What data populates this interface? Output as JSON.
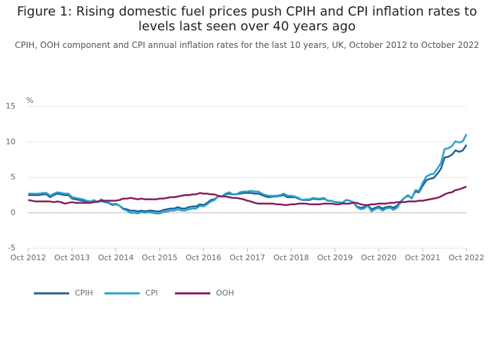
{
  "chart_data": {
    "type": "line",
    "title": "Figure 1: Rising domestic fuel prices push CPIH and CPI inflation rates to levels last seen over 40 years ago",
    "subtitle": "CPIH, OOH component and CPI annual inflation rates for the last 10 years, UK, October 2012 to October 2022",
    "y_unit": "%",
    "categories": [
      "Oct 2012",
      null,
      null,
      null,
      null,
      null,
      null,
      null,
      null,
      null,
      null,
      null,
      "Oct 2013",
      null,
      null,
      null,
      null,
      null,
      null,
      null,
      null,
      null,
      null,
      null,
      "Oct 2014",
      null,
      null,
      null,
      null,
      null,
      null,
      null,
      null,
      null,
      null,
      null,
      "Oct 2015",
      null,
      null,
      null,
      null,
      null,
      null,
      null,
      null,
      null,
      null,
      null,
      "Oct 2016",
      null,
      null,
      null,
      null,
      null,
      null,
      null,
      null,
      null,
      null,
      null,
      "Oct 2017",
      null,
      null,
      null,
      null,
      null,
      null,
      null,
      null,
      null,
      null,
      null,
      "Oct 2018",
      null,
      null,
      null,
      null,
      null,
      null,
      null,
      null,
      null,
      null,
      null,
      "Oct 2019",
      null,
      null,
      null,
      null,
      null,
      null,
      null,
      null,
      null,
      null,
      null,
      "Oct 2020",
      null,
      null,
      null,
      null,
      null,
      null,
      null,
      null,
      null,
      null,
      null,
      "Oct 2021",
      null,
      null,
      null,
      null,
      null,
      null,
      null,
      null,
      null,
      null,
      null,
      "Oct 2022"
    ],
    "series": [
      {
        "name": "CPIH",
        "color": "#206095",
        "values": [
          2.5,
          2.5,
          2.5,
          2.5,
          2.6,
          2.6,
          2.2,
          2.5,
          2.7,
          2.6,
          2.5,
          2.5,
          2.0,
          1.9,
          1.8,
          1.7,
          1.6,
          1.5,
          1.6,
          1.5,
          1.7,
          1.5,
          1.4,
          1.1,
          1.2,
          1.0,
          0.6,
          0.5,
          0.3,
          0.3,
          0.2,
          0.3,
          0.2,
          0.3,
          0.3,
          0.2,
          0.2,
          0.4,
          0.5,
          0.6,
          0.6,
          0.8,
          0.6,
          0.6,
          0.8,
          0.9,
          0.9,
          1.2,
          1.1,
          1.4,
          1.8,
          1.9,
          2.3,
          2.3,
          2.6,
          2.7,
          2.6,
          2.6,
          2.7,
          2.8,
          2.8,
          2.8,
          2.7,
          2.7,
          2.5,
          2.3,
          2.2,
          2.3,
          2.3,
          2.4,
          2.5,
          2.2,
          2.2,
          2.2,
          2.0,
          1.8,
          1.8,
          1.8,
          2.0,
          1.9,
          1.9,
          2.0,
          1.7,
          1.7,
          1.5,
          1.5,
          1.4,
          1.8,
          1.7,
          1.5,
          0.9,
          0.7,
          0.8,
          1.1,
          0.5,
          0.7,
          0.9,
          0.6,
          0.8,
          0.9,
          0.7,
          1.0,
          1.6,
          2.1,
          2.4,
          2.1,
          3.0,
          2.9,
          3.8,
          4.6,
          4.8,
          4.9,
          5.5,
          6.2,
          7.8,
          7.9,
          8.2,
          8.8,
          8.6,
          8.8,
          9.6
        ]
      },
      {
        "name": "CPI",
        "color": "#27a0cc",
        "values": [
          2.7,
          2.7,
          2.7,
          2.7,
          2.8,
          2.8,
          2.4,
          2.7,
          2.9,
          2.8,
          2.7,
          2.7,
          2.2,
          2.1,
          2.0,
          1.9,
          1.7,
          1.6,
          1.8,
          1.5,
          1.9,
          1.6,
          1.5,
          1.2,
          1.3,
          1.0,
          0.5,
          0.3,
          0.0,
          0.0,
          -0.1,
          0.1,
          0.0,
          0.1,
          0.0,
          -0.1,
          -0.1,
          0.1,
          0.2,
          0.3,
          0.3,
          0.5,
          0.3,
          0.3,
          0.5,
          0.6,
          0.6,
          1.0,
          0.9,
          1.2,
          1.6,
          1.8,
          2.3,
          2.3,
          2.7,
          2.9,
          2.6,
          2.6,
          2.9,
          3.0,
          3.0,
          3.1,
          3.0,
          3.0,
          2.7,
          2.5,
          2.4,
          2.4,
          2.4,
          2.5,
          2.7,
          2.4,
          2.4,
          2.3,
          2.1,
          1.8,
          1.9,
          1.9,
          2.1,
          2.0,
          2.0,
          2.1,
          1.7,
          1.7,
          1.5,
          1.5,
          1.3,
          1.8,
          1.7,
          1.5,
          0.8,
          0.5,
          0.6,
          1.0,
          0.2,
          0.5,
          0.7,
          0.3,
          0.6,
          0.7,
          0.4,
          0.7,
          1.5,
          2.1,
          2.5,
          2.0,
          3.2,
          3.1,
          4.2,
          5.1,
          5.4,
          5.5,
          6.2,
          7.0,
          9.0,
          9.1,
          9.4,
          10.1,
          9.9,
          10.1,
          11.1
        ]
      },
      {
        "name": "OOH",
        "color": "#871a5b",
        "values": [
          1.8,
          1.7,
          1.6,
          1.6,
          1.6,
          1.6,
          1.6,
          1.5,
          1.6,
          1.5,
          1.3,
          1.4,
          1.5,
          1.4,
          1.4,
          1.4,
          1.4,
          1.4,
          1.5,
          1.6,
          1.7,
          1.7,
          1.7,
          1.7,
          1.7,
          1.8,
          2.0,
          2.0,
          2.1,
          2.0,
          1.9,
          2.0,
          1.9,
          1.9,
          1.9,
          1.9,
          2.0,
          2.0,
          2.1,
          2.2,
          2.2,
          2.3,
          2.4,
          2.5,
          2.5,
          2.6,
          2.6,
          2.8,
          2.7,
          2.7,
          2.6,
          2.6,
          2.4,
          2.3,
          2.3,
          2.2,
          2.1,
          2.1,
          2.0,
          1.9,
          1.7,
          1.6,
          1.4,
          1.3,
          1.3,
          1.3,
          1.3,
          1.3,
          1.2,
          1.2,
          1.1,
          1.1,
          1.2,
          1.2,
          1.3,
          1.3,
          1.3,
          1.2,
          1.2,
          1.2,
          1.2,
          1.3,
          1.3,
          1.3,
          1.2,
          1.2,
          1.3,
          1.3,
          1.3,
          1.4,
          1.4,
          1.2,
          1.1,
          1.1,
          1.2,
          1.2,
          1.3,
          1.3,
          1.3,
          1.4,
          1.4,
          1.5,
          1.5,
          1.5,
          1.6,
          1.6,
          1.6,
          1.7,
          1.7,
          1.8,
          1.9,
          2.0,
          2.1,
          2.3,
          2.6,
          2.8,
          2.9,
          3.2,
          3.3,
          3.5,
          3.7
        ]
      }
    ],
    "ylim": [
      -5,
      15
    ],
    "yticks": [
      -5,
      0,
      5,
      10,
      15
    ],
    "grid": true,
    "legend": "bottom-left"
  }
}
